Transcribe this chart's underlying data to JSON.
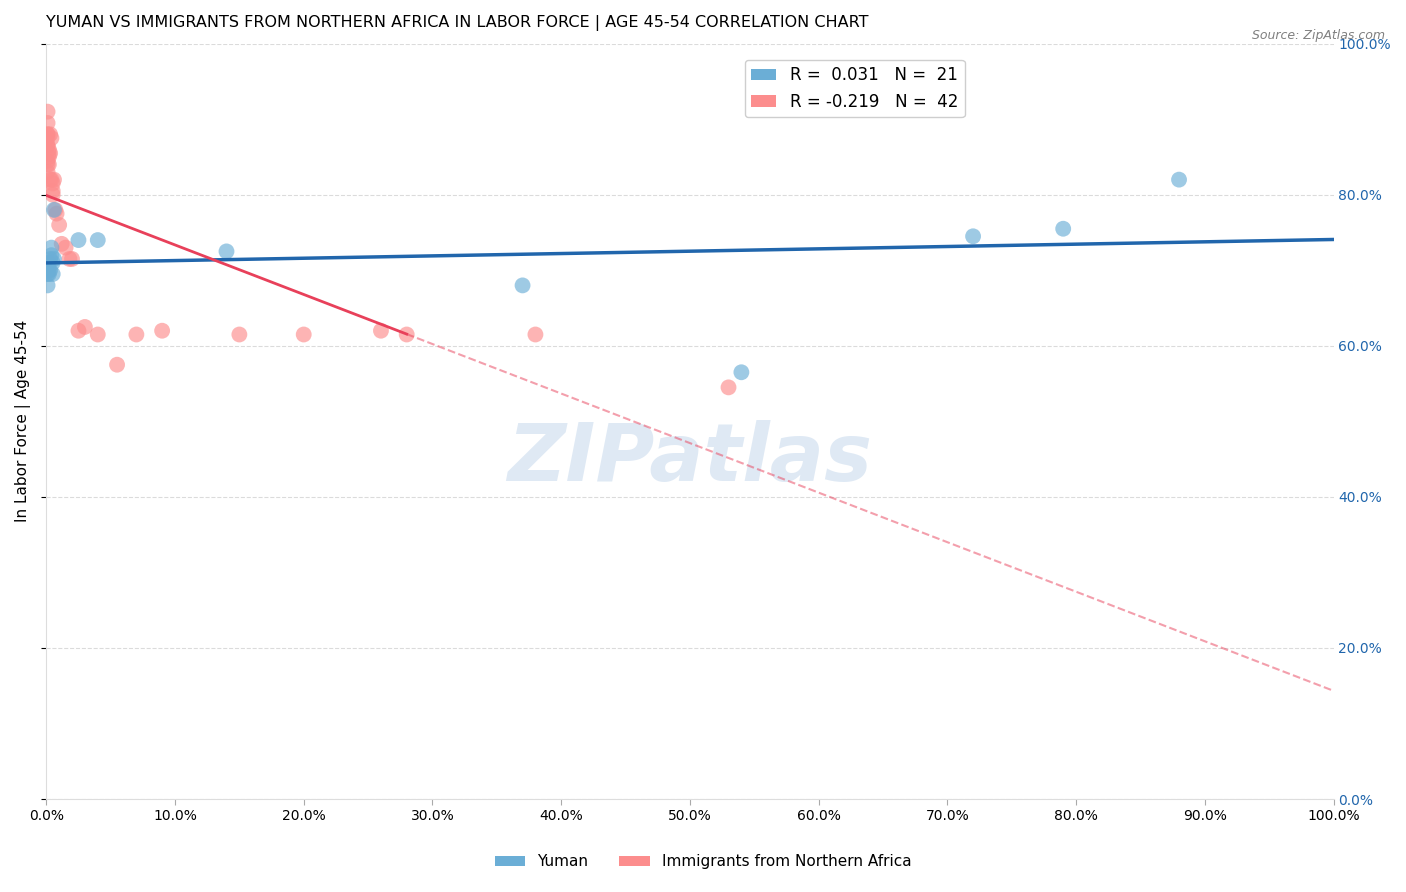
{
  "title": "YUMAN VS IMMIGRANTS FROM NORTHERN AFRICA IN LABOR FORCE | AGE 45-54 CORRELATION CHART",
  "source": "Source: ZipAtlas.com",
  "xlabel": "",
  "ylabel": "In Labor Force | Age 45-54",
  "watermark": "ZIPatlas",
  "yuman_color": "#6baed6",
  "immigrants_color": "#fc8d8d",
  "yuman_line_color": "#2166ac",
  "immigrants_line_color": "#e8405a",
  "legend_R_yuman": "R =  0.031",
  "legend_N_yuman": "N =  21",
  "legend_R_immigrants": "R = -0.219",
  "legend_N_immigrants": "N =  42",
  "xmin": 0.0,
  "xmax": 1.0,
  "ymin": 0.0,
  "ymax": 1.0,
  "yuman_x": [
    0.001,
    0.001,
    0.002,
    0.002,
    0.002,
    0.003,
    0.003,
    0.004,
    0.004,
    0.005,
    0.005,
    0.006,
    0.006,
    0.025,
    0.04,
    0.14,
    0.37,
    0.54,
    0.72,
    0.79,
    0.88
  ],
  "yuman_y": [
    0.695,
    0.68,
    0.71,
    0.7,
    0.695,
    0.7,
    0.715,
    0.72,
    0.73,
    0.695,
    0.71,
    0.78,
    0.715,
    0.74,
    0.74,
    0.725,
    0.68,
    0.565,
    0.745,
    0.755,
    0.82
  ],
  "immigrants_x": [
    0.001,
    0.001,
    0.001,
    0.001,
    0.001,
    0.001,
    0.001,
    0.001,
    0.001,
    0.001,
    0.002,
    0.002,
    0.002,
    0.002,
    0.003,
    0.003,
    0.003,
    0.004,
    0.004,
    0.005,
    0.005,
    0.005,
    0.006,
    0.007,
    0.008,
    0.01,
    0.012,
    0.015,
    0.018,
    0.02,
    0.025,
    0.03,
    0.04,
    0.055,
    0.07,
    0.09,
    0.15,
    0.2,
    0.26,
    0.28,
    0.38,
    0.53
  ],
  "immigrants_y": [
    0.88,
    0.91,
    0.875,
    0.865,
    0.84,
    0.88,
    0.83,
    0.845,
    0.865,
    0.895,
    0.85,
    0.86,
    0.855,
    0.84,
    0.855,
    0.88,
    0.82,
    0.82,
    0.875,
    0.805,
    0.8,
    0.815,
    0.82,
    0.78,
    0.775,
    0.76,
    0.735,
    0.73,
    0.715,
    0.715,
    0.62,
    0.625,
    0.615,
    0.575,
    0.615,
    0.62,
    0.615,
    0.615,
    0.62,
    0.615,
    0.615,
    0.545
  ],
  "yuman_scatter_alpha": 0.65,
  "immigrants_scatter_alpha": 0.65,
  "scatter_size": 130,
  "grid_color": "#cccccc",
  "grid_linestyle": "--",
  "grid_alpha": 0.7,
  "title_fontsize": 11.5,
  "label_fontsize": 11,
  "tick_fontsize": 10,
  "legend_fontsize": 12,
  "yticks": [
    0.0,
    0.2,
    0.4,
    0.6,
    0.8,
    1.0
  ],
  "xticks": [
    0.0,
    0.1,
    0.2,
    0.3,
    0.4,
    0.5,
    0.6,
    0.7,
    0.8,
    0.9,
    1.0
  ]
}
